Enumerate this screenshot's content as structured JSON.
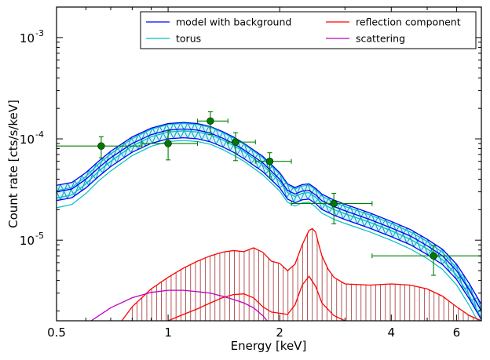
{
  "chart_data": {
    "type": "line",
    "x_scale": "log",
    "y_scale": "log",
    "xlim": [
      0.5,
      7.0
    ],
    "ylim": [
      1.6e-06,
      0.002
    ],
    "xlabel": "Energy [keV]",
    "ylabel": "Count rate [cts/s/keV]",
    "x_ticks": [
      {
        "value": 0.5,
        "label": "0.5"
      },
      {
        "value": 1,
        "label": "1"
      },
      {
        "value": 2,
        "label": "2"
      },
      {
        "value": 4,
        "label": "4"
      },
      {
        "value": 6,
        "label": "6"
      }
    ],
    "y_ticks": [
      {
        "value": 1e-05,
        "mantissa": "10",
        "exp": "-5"
      },
      {
        "value": 0.0001,
        "mantissa": "10",
        "exp": "-4"
      },
      {
        "value": 0.001,
        "mantissa": "10",
        "exp": "-3"
      }
    ],
    "grid": false,
    "legend": {
      "placement": "top-right",
      "entries": [
        {
          "label": "model with background",
          "color": "#0000ff"
        },
        {
          "label": "reflection component",
          "color": "#ff0000"
        },
        {
          "label": "torus",
          "color": "#00bfbf"
        },
        {
          "label": "scattering",
          "color": "#bf00bf"
        }
      ]
    },
    "series": [
      {
        "name": "model with background",
        "color": "#0000ff",
        "x": [
          0.5,
          0.55,
          0.6,
          0.65,
          0.7,
          0.8,
          0.9,
          1.0,
          1.1,
          1.2,
          1.3,
          1.4,
          1.5,
          1.6,
          1.8,
          2.0,
          2.1,
          2.2,
          2.3,
          2.4,
          2.5,
          2.6,
          2.8,
          3.0,
          3.5,
          4.0,
          4.5,
          5.0,
          5.5,
          6.0,
          6.5,
          7.0
        ],
        "y": [
          3e-05,
          3.2e-05,
          4e-05,
          5.2e-05,
          6.5e-05,
          9e-05,
          0.00011,
          0.000122,
          0.000125,
          0.000122,
          0.000114,
          0.000102,
          9e-05,
          7.8e-05,
          5.8e-05,
          4e-05,
          3.1e-05,
          2.85e-05,
          3.05e-05,
          3.1e-05,
          2.8e-05,
          2.45e-05,
          2.15e-05,
          1.95e-05,
          1.6e-05,
          1.32e-05,
          1.1e-05,
          8.8e-06,
          7e-06,
          5e-06,
          3.2e-06,
          2e-06
        ]
      },
      {
        "name": "torus",
        "color": "#00bfbf",
        "x": [
          0.5,
          0.55,
          0.6,
          0.65,
          0.7,
          0.8,
          0.9,
          1.0,
          1.1,
          1.2,
          1.3,
          1.4,
          1.5,
          1.6,
          1.8,
          2.0,
          2.1,
          2.2,
          2.3,
          2.4,
          2.5,
          2.6,
          2.8,
          3.0,
          3.5,
          4.0,
          4.5,
          5.0,
          5.5,
          6.0,
          6.5,
          7.0
        ],
        "y": [
          2.6e-05,
          2.8e-05,
          3.6e-05,
          4.8e-05,
          6e-05,
          8.5e-05,
          0.000105,
          0.000117,
          0.00012,
          0.000117,
          0.00011,
          9.8e-05,
          8.6e-05,
          7.5e-05,
          5.5e-05,
          3.8e-05,
          2.95e-05,
          2.7e-05,
          2.9e-05,
          2.95e-05,
          2.65e-05,
          2.3e-05,
          2e-05,
          1.82e-05,
          1.5e-05,
          1.24e-05,
          1.02e-05,
          8.2e-06,
          6.4e-06,
          4.5e-06,
          2.8e-06,
          1.7e-06
        ]
      },
      {
        "name": "reflection component",
        "color": "#ff0000",
        "x": [
          0.75,
          0.8,
          0.9,
          1.0,
          1.1,
          1.2,
          1.3,
          1.4,
          1.5,
          1.6,
          1.7,
          1.8,
          1.9,
          2.0,
          2.1,
          2.2,
          2.3,
          2.4,
          2.45,
          2.5,
          2.55,
          2.6,
          2.7,
          2.8,
          3.0,
          3.5,
          4.0,
          4.5,
          5.0,
          5.5,
          6.0,
          6.5,
          7.0
        ],
        "y": [
          1.6e-06,
          2.2e-06,
          3.3e-06,
          4.3e-06,
          5.3e-06,
          6.2e-06,
          7e-06,
          7.6e-06,
          7.9e-06,
          7.7e-06,
          8.4e-06,
          7.6e-06,
          6.2e-06,
          5.9e-06,
          5e-06,
          5.8e-06,
          9e-06,
          1.25e-05,
          1.3e-05,
          1.2e-05,
          9e-06,
          7e-06,
          5.2e-06,
          4.3e-06,
          3.7e-06,
          3.6e-06,
          3.7e-06,
          3.6e-06,
          3.3e-06,
          2.8e-06,
          2.2e-06,
          1.8e-06,
          1.6e-06
        ]
      },
      {
        "name": "reflection component (lower)",
        "color": "#ff0000",
        "x": [
          1.0,
          1.1,
          1.2,
          1.3,
          1.4,
          1.5,
          1.6,
          1.7,
          1.8,
          1.9,
          2.0,
          2.1,
          2.2,
          2.3,
          2.4,
          2.5,
          2.6,
          2.8,
          3.0
        ],
        "y": [
          1.6e-06,
          1.85e-06,
          2.1e-06,
          2.4e-06,
          2.7e-06,
          2.9e-06,
          2.95e-06,
          2.7e-06,
          2.2e-06,
          1.95e-06,
          1.9e-06,
          1.85e-06,
          2.3e-06,
          3.6e-06,
          4.4e-06,
          3.5e-06,
          2.4e-06,
          1.8e-06,
          1.6e-06
        ]
      },
      {
        "name": "scattering",
        "color": "#bf00bf",
        "x": [
          0.62,
          0.7,
          0.8,
          0.9,
          1.0,
          1.1,
          1.2,
          1.3,
          1.4,
          1.5,
          1.6,
          1.7,
          1.8,
          1.85
        ],
        "y": [
          1.6e-06,
          2.15e-06,
          2.7e-06,
          3.05e-06,
          3.2e-06,
          3.2e-06,
          3.1e-06,
          3e-06,
          2.8e-06,
          2.6e-06,
          2.4e-06,
          2.15e-06,
          1.8e-06,
          1.6e-06
        ]
      }
    ],
    "data_points": {
      "color": "#008000",
      "points": [
        {
          "x": 0.66,
          "y": 8.5e-05,
          "xerr": [
            0.5,
            0.85
          ],
          "yerr": [
            6.5e-05,
            0.000105
          ]
        },
        {
          "x": 1.0,
          "y": 9e-05,
          "xerr": [
            0.85,
            1.2
          ],
          "yerr": [
            6.2e-05,
            0.00012
          ]
        },
        {
          "x": 1.3,
          "y": 0.00015,
          "xerr": [
            1.2,
            1.45
          ],
          "yerr": [
            0.00011,
            0.000185
          ]
        },
        {
          "x": 1.52,
          "y": 9.3e-05,
          "xerr": [
            1.45,
            1.72
          ],
          "yerr": [
            6.1e-05,
            0.000115
          ]
        },
        {
          "x": 1.88,
          "y": 6e-05,
          "xerr": [
            1.72,
            2.15
          ],
          "yerr": [
            4.2e-05,
            7.3e-05
          ]
        },
        {
          "x": 2.8,
          "y": 2.3e-05,
          "xerr": [
            2.15,
            3.55
          ],
          "yerr": [
            1.45e-05,
            2.9e-05
          ]
        },
        {
          "x": 5.2,
          "y": 7e-06,
          "xerr": [
            3.55,
            7.0
          ],
          "yerr": [
            4.5e-06,
            8.8e-06
          ]
        }
      ]
    }
  }
}
